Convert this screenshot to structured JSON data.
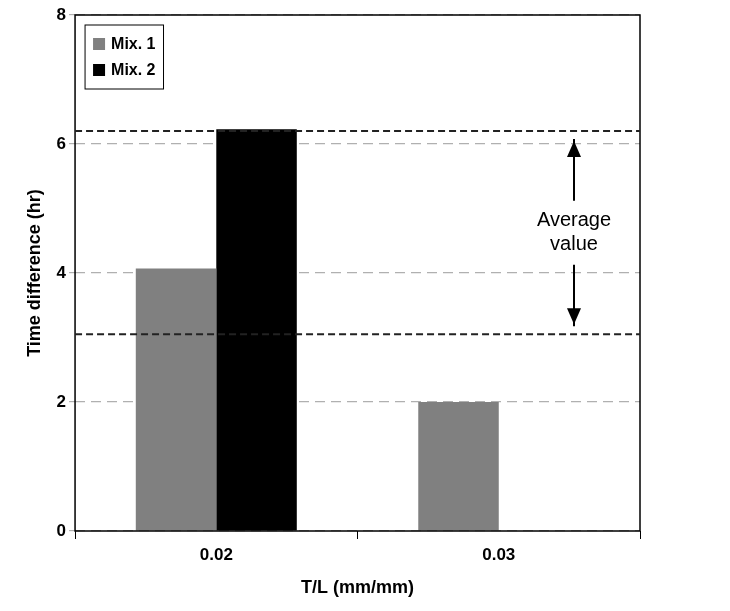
{
  "chart_data": {
    "type": "bar",
    "categories": [
      "0.02",
      "0.03"
    ],
    "series": [
      {
        "name": "Mix. 1",
        "color": "#808080",
        "values": [
          4.07,
          2.0
        ]
      },
      {
        "name": "Mix. 2",
        "color": "#000000",
        "values": [
          6.23,
          null
        ]
      }
    ],
    "x_label": "T/L (mm/mm)",
    "y_label": "Time difference (hr)",
    "ylim": [
      0,
      8
    ],
    "yticks": [
      0,
      2,
      4,
      6,
      8
    ],
    "grid": true,
    "legend": "upper left",
    "average_lines": [
      6.2,
      3.05
    ],
    "annotation": "Average value"
  }
}
